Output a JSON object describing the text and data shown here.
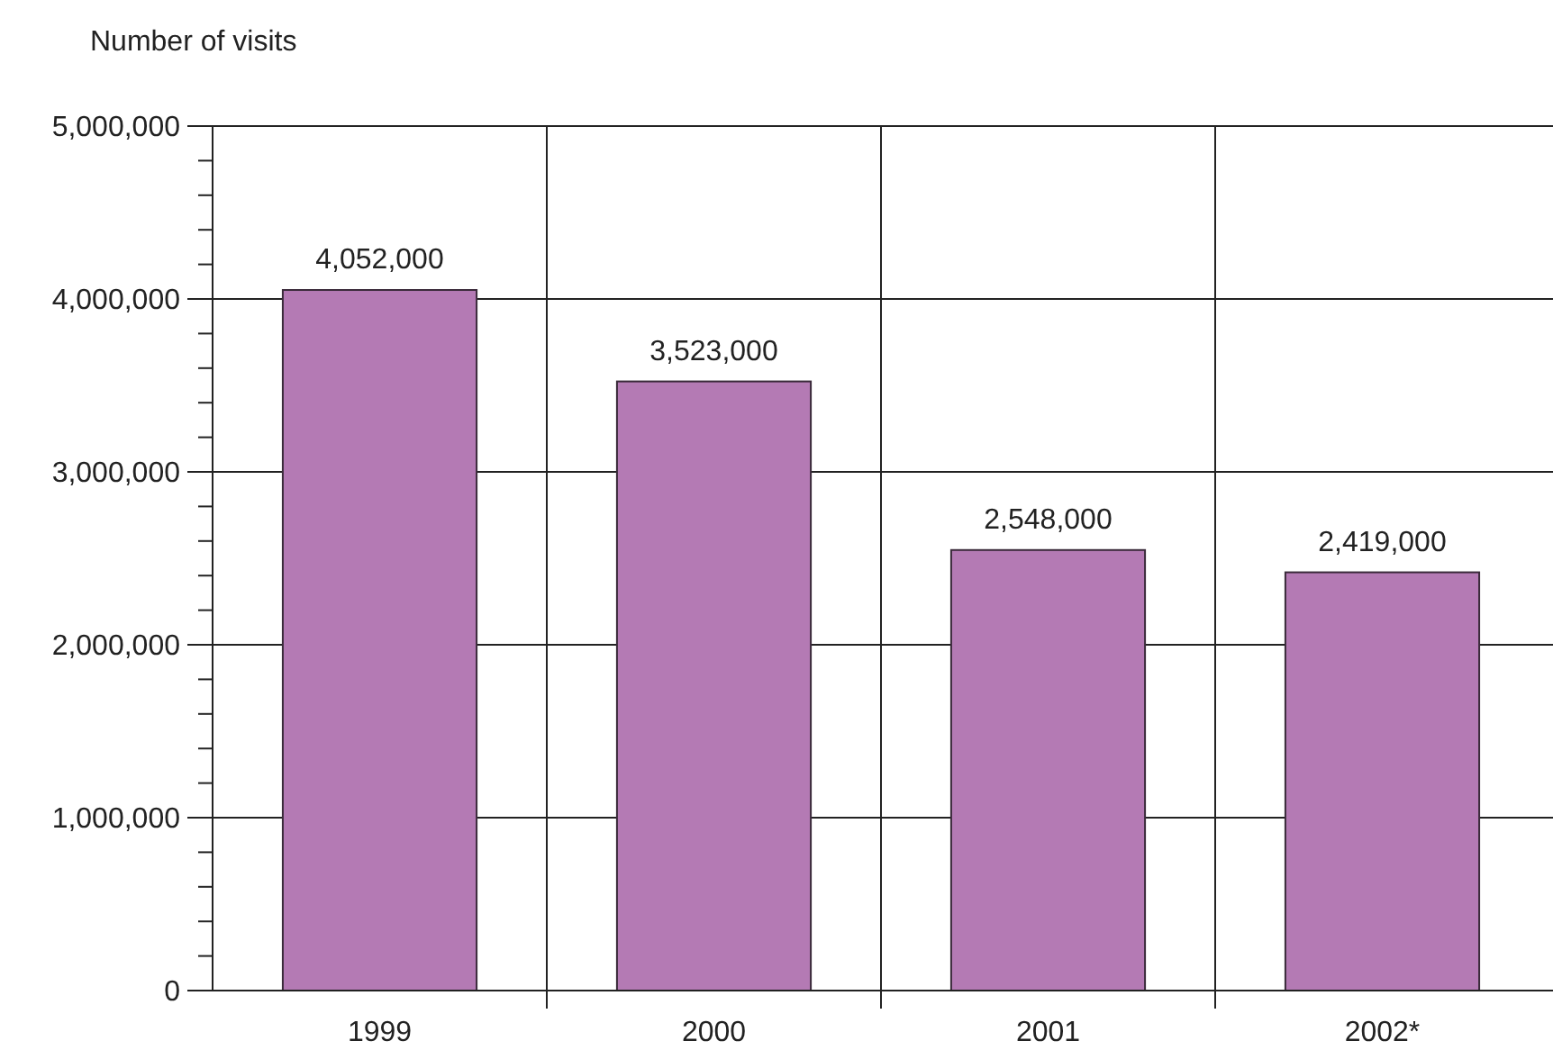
{
  "chart_data": {
    "type": "bar",
    "ylabel": "Number of visits",
    "categories": [
      "1999",
      "2000",
      "2001",
      "2002*"
    ],
    "values": [
      4052000,
      3523000,
      2548000,
      2419000
    ],
    "color": "#b47ab4",
    "value_labels": [
      "4,052,000",
      "3,523,000",
      "2,548,000",
      "2,419,000"
    ],
    "ylim": [
      0,
      5000000
    ],
    "yticks": [
      {
        "value": 0,
        "label": "0"
      },
      {
        "value": 200000,
        "label": null
      },
      {
        "value": 400000,
        "label": null
      },
      {
        "value": 600000,
        "label": null
      },
      {
        "value": 800000,
        "label": null
      },
      {
        "value": 1000000,
        "label": "1,000,000"
      },
      {
        "value": 1200000,
        "label": null
      },
      {
        "value": 1400000,
        "label": null
      },
      {
        "value": 1600000,
        "label": null
      },
      {
        "value": 1800000,
        "label": null
      },
      {
        "value": 2000000,
        "label": "2,000,000"
      },
      {
        "value": 2200000,
        "label": null
      },
      {
        "value": 2400000,
        "label": null
      },
      {
        "value": 2600000,
        "label": null
      },
      {
        "value": 2800000,
        "label": null
      },
      {
        "value": 3000000,
        "label": "3,000,000"
      },
      {
        "value": 3200000,
        "label": null
      },
      {
        "value": 3400000,
        "label": null
      },
      {
        "value": 3600000,
        "label": null
      },
      {
        "value": 3800000,
        "label": null
      },
      {
        "value": 4000000,
        "label": "4,000,000"
      },
      {
        "value": 4200000,
        "label": null
      },
      {
        "value": 4400000,
        "label": null
      },
      {
        "value": 4600000,
        "label": null
      },
      {
        "value": 4800000,
        "label": null
      },
      {
        "value": 5000000,
        "label": "5,000,000"
      }
    ],
    "grid": true
  }
}
